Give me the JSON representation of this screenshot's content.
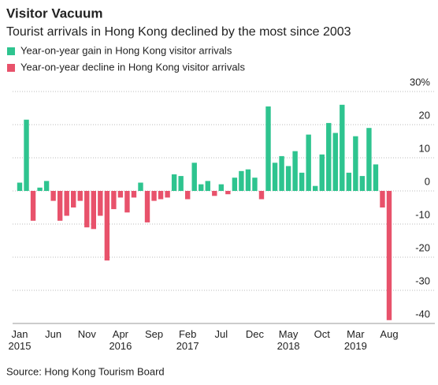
{
  "chart_data": {
    "type": "bar",
    "title": "Visitor Vacuum",
    "subtitle": "Tourist arrivals in Hong Kong declined by the most since 2003",
    "source": "Source: Hong Kong Tourism Board",
    "categories": [
      "Jan\n2015",
      null,
      null,
      null,
      null,
      "Jun",
      null,
      null,
      null,
      null,
      "Nov",
      null,
      null,
      null,
      null,
      "Apr\n2016",
      null,
      null,
      null,
      null,
      "Sep",
      null,
      null,
      null,
      null,
      "Feb\n2017",
      null,
      null,
      null,
      null,
      "Jul",
      null,
      null,
      null,
      null,
      "Dec",
      null,
      null,
      null,
      null,
      "May\n2018",
      null,
      null,
      null,
      null,
      "Oct",
      null,
      null,
      null,
      null,
      "Mar\n2019",
      null,
      null,
      null,
      null,
      "Aug"
    ],
    "series": [
      {
        "name": "Year-on-year gain in Hong Kong visitor arrivals",
        "color": "#2ec48f",
        "values": [
          2.5,
          21.5,
          null,
          1,
          3,
          null,
          null,
          null,
          null,
          null,
          null,
          null,
          null,
          null,
          null,
          null,
          null,
          null,
          2.5,
          null,
          null,
          null,
          null,
          5,
          4.5,
          null,
          8.5,
          2,
          3,
          null,
          2,
          null,
          4,
          6,
          6.5,
          4,
          null,
          25.5,
          8.5,
          10.5,
          7.5,
          12,
          5.5,
          17,
          1.5,
          11,
          20.5,
          17.5,
          26,
          5.5,
          16.5,
          4.5,
          19,
          8,
          null,
          null
        ]
      },
      {
        "name": "Year-on-year decline in Hong Kong visitor arrivals",
        "color": "#e8526b",
        "values": [
          null,
          null,
          -9,
          null,
          null,
          -3,
          -9,
          -7.5,
          -5,
          -3,
          -11,
          -11.5,
          -7.5,
          -21,
          -5.5,
          -2,
          -6.5,
          -2,
          null,
          -9.5,
          -3,
          -2.5,
          -2,
          null,
          null,
          -2.5,
          null,
          null,
          null,
          -1.5,
          null,
          -1,
          null,
          null,
          null,
          null,
          -2.5,
          null,
          null,
          null,
          null,
          null,
          null,
          null,
          null,
          null,
          null,
          null,
          null,
          null,
          null,
          null,
          null,
          null,
          -5,
          -39
        ]
      }
    ],
    "ylim": [
      -40,
      30
    ],
    "yticks": [
      -40,
      -30,
      -20,
      -10,
      0,
      10,
      20,
      {
        "value": 30,
        "label": "30%"
      }
    ],
    "grid": true
  }
}
